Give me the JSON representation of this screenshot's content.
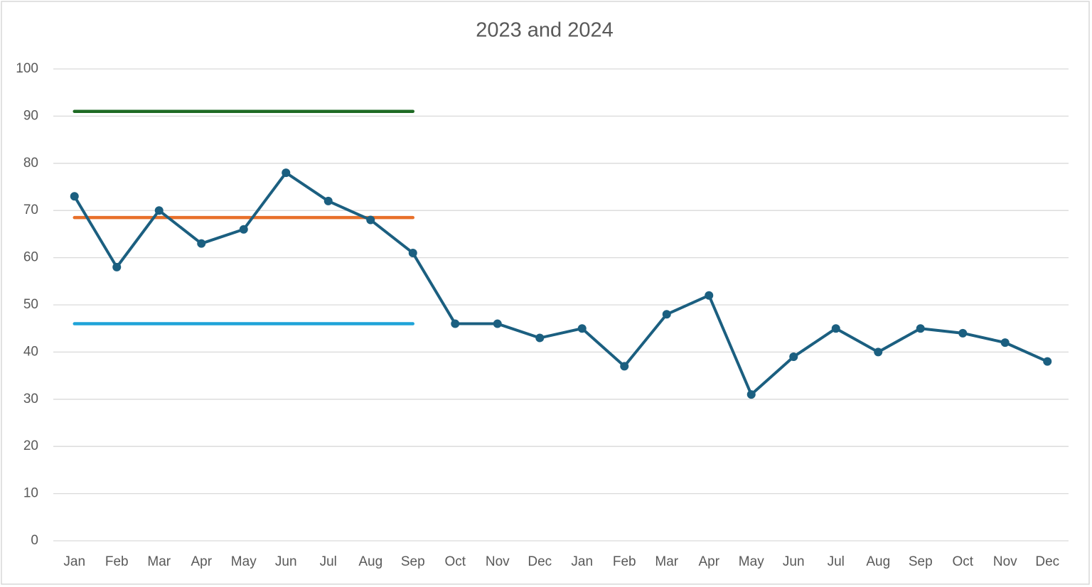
{
  "chart_data": {
    "type": "line",
    "title": "2023 and 2024",
    "categories": [
      "Jan",
      "Feb",
      "Mar",
      "Apr",
      "May",
      "Jun",
      "Jul",
      "Aug",
      "Sep",
      "Oct",
      "Nov",
      "Dec",
      "Jan",
      "Feb",
      "Mar",
      "Apr",
      "May",
      "Jun",
      "Jul",
      "Aug",
      "Sep",
      "Oct",
      "Nov",
      "Dec"
    ],
    "series": [
      {
        "color": "#1e6b24",
        "markers": false,
        "values": [
          91,
          91,
          91,
          91,
          91,
          91,
          91,
          91,
          91,
          null,
          null,
          null,
          null,
          null,
          null,
          null,
          null,
          null,
          null,
          null,
          null,
          null,
          null,
          null
        ]
      },
      {
        "color": "#e8702a",
        "markers": false,
        "values": [
          68.5,
          68.5,
          68.5,
          68.5,
          68.5,
          68.5,
          68.5,
          68.5,
          68.5,
          null,
          null,
          null,
          null,
          null,
          null,
          null,
          null,
          null,
          null,
          null,
          null,
          null,
          null,
          null
        ]
      },
      {
        "color": "#1fa3d8",
        "markers": false,
        "values": [
          46,
          46,
          46,
          46,
          46,
          46,
          46,
          46,
          46,
          null,
          null,
          null,
          null,
          null,
          null,
          null,
          null,
          null,
          null,
          null,
          null,
          null,
          null,
          null
        ]
      },
      {
        "color": "#1b5f80",
        "markers": true,
        "values": [
          73,
          58,
          70,
          63,
          66,
          78,
          72,
          68,
          61,
          46,
          46,
          43,
          45,
          37,
          48,
          52,
          31,
          39,
          45,
          40,
          45,
          44,
          42,
          38
        ]
      }
    ],
    "ylim": [
      0,
      100
    ],
    "yticks": [
      0,
      10,
      20,
      30,
      40,
      50,
      60,
      70,
      80,
      90,
      100
    ],
    "grid": true
  }
}
